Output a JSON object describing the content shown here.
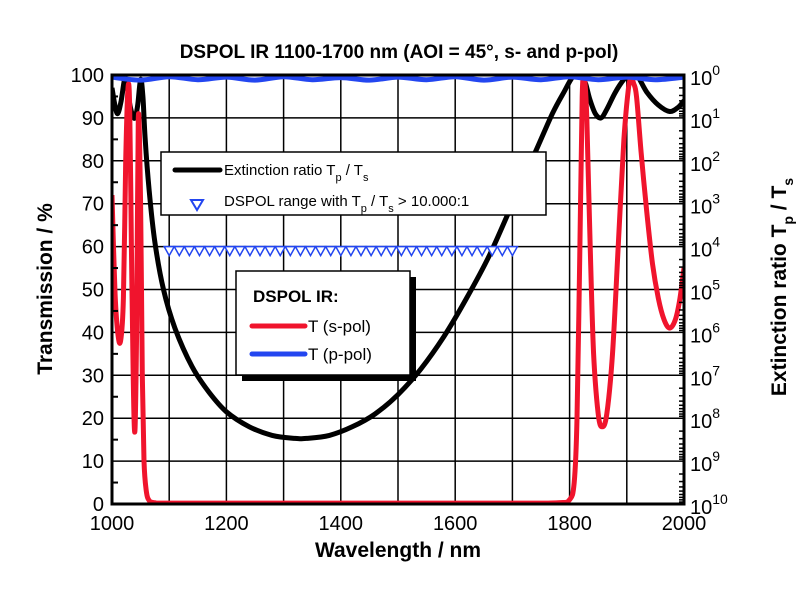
{
  "chart_data": {
    "type": "line",
    "title": "DSPOL IR 1100-1700 nm (AOI = 45°, s- and p-pol)",
    "xlabel": "Wavelength / nm",
    "ylabel": "Transmission / %",
    "y2label": "Extinction ratio T_p / T_s",
    "y2label_parts": {
      "main": "Extinction ratio T",
      "sub1": "p",
      "mid": " / T",
      "sub2": "s"
    },
    "xlim": [
      1000,
      2000
    ],
    "ylim": [
      0,
      100
    ],
    "y2lim_exponent": [
      0,
      10
    ],
    "y2scale": "log (inverted)",
    "grid": true,
    "x_ticks": [
      "1000",
      "1200",
      "1400",
      "1600",
      "1800",
      "2000"
    ],
    "y_ticks": [
      "0",
      "10",
      "20",
      "30",
      "40",
      "50",
      "60",
      "70",
      "80",
      "90",
      "100"
    ],
    "y2_ticks": [
      {
        "base": "10",
        "exp": "0"
      },
      {
        "base": "10",
        "exp": "1"
      },
      {
        "base": "10",
        "exp": "2"
      },
      {
        "base": "10",
        "exp": "3"
      },
      {
        "base": "10",
        "exp": "4"
      },
      {
        "base": "10",
        "exp": "5"
      },
      {
        "base": "10",
        "exp": "6"
      },
      {
        "base": "10",
        "exp": "7"
      },
      {
        "base": "10",
        "exp": "8"
      },
      {
        "base": "10",
        "exp": "9"
      },
      {
        "base": "10",
        "exp": "10"
      }
    ],
    "colors": {
      "s_pol": "#f0142d",
      "p_pol": "#2346f0",
      "extinction": "#000000",
      "range": "#2346f0"
    },
    "legend1": {
      "position": "upper-center",
      "items": [
        {
          "label": "Extinction ratio T",
          "sub1": "p",
          "mid": " / T",
          "sub2": "s",
          "marker": "line"
        },
        {
          "label": "DSPOL range with T",
          "sub1": "p",
          "mid": " / T",
          "sub2": "s",
          "tail": " > 10.000:1",
          "marker": "triangle-down"
        }
      ]
    },
    "legend2": {
      "position": "center",
      "title": "DSPOL IR:",
      "items": [
        {
          "label": "T (s-pol)",
          "color": "#f0142d"
        },
        {
          "label": "T (p-pol)",
          "color": "#2346f0"
        }
      ]
    },
    "series": [
      {
        "name": "T (s-pol)",
        "axis": "left",
        "x": [
          1000,
          1005,
          1010,
          1015,
          1020,
          1024,
          1028,
          1031,
          1034,
          1037,
          1040,
          1043,
          1046,
          1050,
          1053,
          1056,
          1060,
          1065,
          1075,
          1100,
          1300,
          1500,
          1700,
          1780,
          1800,
          1808,
          1813,
          1818,
          1822,
          1826,
          1830,
          1836,
          1842,
          1850,
          1857,
          1865,
          1875,
          1885,
          1895,
          1903,
          1908,
          1912,
          1917,
          1925,
          1935,
          1945,
          1955,
          1965,
          1975,
          1985,
          1993,
          2000
        ],
        "y": [
          72,
          50,
          40,
          38,
          48,
          80,
          97,
          92,
          60,
          30,
          17,
          40,
          90,
          70,
          30,
          10,
          3,
          0.8,
          0.3,
          0.2,
          0.2,
          0.2,
          0.2,
          0.3,
          1,
          5,
          20,
          60,
          95,
          99,
          90,
          60,
          35,
          21,
          18,
          21,
          35,
          60,
          85,
          97,
          99,
          98,
          95,
          82,
          68,
          56,
          48,
          43,
          41,
          43,
          48,
          55
        ]
      },
      {
        "name": "T (p-pol)",
        "axis": "left",
        "x": [
          1000,
          1050,
          1100,
          1150,
          1200,
          1250,
          1300,
          1350,
          1400,
          1450,
          1500,
          1550,
          1600,
          1650,
          1700,
          1750,
          1800,
          1850,
          1900,
          1950,
          2000
        ],
        "y": [
          99.5,
          98.8,
          99.6,
          98.9,
          99.5,
          98.8,
          99.6,
          98.9,
          99.4,
          98.8,
          99.5,
          98.9,
          99.6,
          98.8,
          99.5,
          98.9,
          99.6,
          98.9,
          99.5,
          98.9,
          99.5
        ]
      },
      {
        "name": "Extinction ratio T_p / T_s",
        "axis": "right",
        "units": "log10 exponent",
        "x": [
          1000,
          1005,
          1010,
          1016,
          1022,
          1026,
          1030,
          1035,
          1040,
          1045,
          1050,
          1054,
          1058,
          1065,
          1075,
          1090,
          1110,
          1140,
          1170,
          1200,
          1240,
          1280,
          1320,
          1340,
          1380,
          1420,
          1460,
          1500,
          1540,
          1580,
          1620,
          1660,
          1700,
          1740,
          1770,
          1790,
          1805,
          1815,
          1822,
          1828,
          1835,
          1845,
          1855,
          1865,
          1880,
          1895,
          1905,
          1912,
          1920,
          1935,
          1955,
          1975,
          1990,
          2000
        ],
        "y": [
          0.3,
          0.7,
          0.9,
          0.6,
          0.1,
          0.2,
          0.6,
          0.9,
          1.0,
          0.7,
          0.1,
          0.5,
          1.5,
          2.7,
          3.9,
          5.0,
          5.9,
          6.8,
          7.4,
          7.85,
          8.2,
          8.4,
          8.47,
          8.47,
          8.4,
          8.2,
          7.9,
          7.45,
          6.85,
          6.1,
          5.2,
          4.2,
          3.0,
          1.8,
          0.9,
          0.4,
          0.05,
          0.0,
          0.05,
          0.2,
          0.55,
          0.9,
          1.0,
          0.8,
          0.4,
          0.1,
          0.0,
          0.0,
          0.05,
          0.4,
          0.7,
          0.85,
          0.75,
          0.6
        ]
      },
      {
        "name": "DSPOL range with T_p / T_s > 10.000:1",
        "axis": "left",
        "marker": "triangle-down",
        "x_start": 1100,
        "x_end": 1700,
        "y": 60,
        "count": 35
      }
    ]
  }
}
